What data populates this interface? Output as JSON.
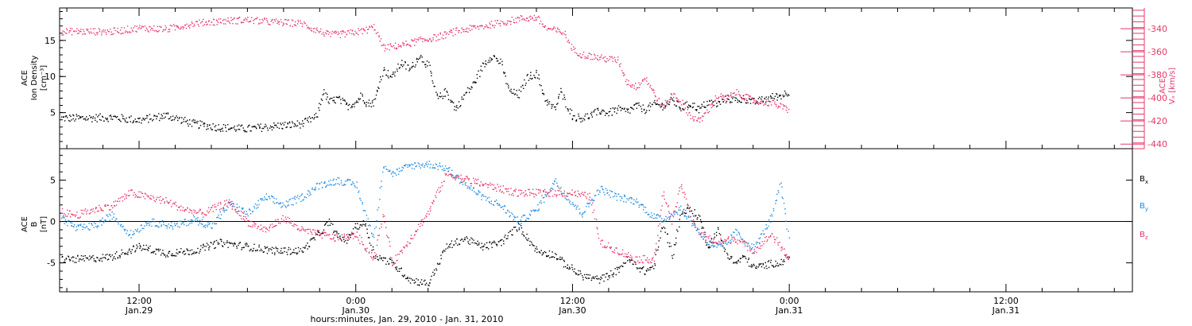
{
  "chart_data": [
    {
      "type": "scatter",
      "panel": "top",
      "ylabel_left": [
        "ACE",
        "Ion Density",
        "[cm⁻³]"
      ],
      "ylabel_right": [
        "ACE",
        "Vₓ [km/s]"
      ],
      "ylim_left": [
        0,
        19.5
      ],
      "yticks_left": [
        5,
        10,
        15
      ],
      "ylim_right": [
        -444,
        -322
      ],
      "yticks_right": [
        -340,
        -360,
        -380,
        -400,
        -420,
        -440
      ],
      "x_unit": "hours since 2010-01-29 00:00",
      "xlim": [
        7.6,
        67
      ],
      "series": [
        {
          "axis": "left",
          "color": "#000000",
          "x": [
            7.7,
            9,
            10.5,
            12,
            13.5,
            15,
            16.5,
            18,
            19.5,
            21,
            21.8,
            22.2,
            22.5,
            23,
            23.5,
            24,
            24.3,
            24.6,
            25,
            25.5,
            26,
            26.5,
            27,
            27.5,
            28,
            28.5,
            29,
            29.5,
            30,
            30.5,
            31,
            31.5,
            32,
            32.5,
            33,
            33.5,
            34,
            34.5,
            35,
            35.3,
            36,
            36.5,
            37,
            37.5,
            38,
            38.5,
            39,
            39.5,
            40,
            40.5,
            41,
            41.5,
            42,
            42.5,
            43,
            43.5,
            44,
            44.5,
            45,
            45.5,
            46,
            46.5,
            47,
            47.5,
            48
          ],
          "y": [
            4.3,
            4.3,
            4.4,
            4,
            4.7,
            3.5,
            3,
            2.8,
            3.2,
            3.5,
            4.5,
            8,
            6.5,
            7,
            6,
            6.5,
            7.5,
            6.3,
            6.5,
            11,
            10,
            12,
            11,
            13,
            11.5,
            7,
            8,
            5.5,
            7.5,
            9,
            11.5,
            13,
            12,
            8,
            7.5,
            10,
            10.5,
            6.7,
            5.5,
            8,
            4.5,
            4.3,
            4.7,
            5.3,
            5,
            5.5,
            5.2,
            6,
            5.5,
            6.2,
            6,
            6.7,
            5.7,
            6.3,
            5.5,
            6.5,
            6.2,
            7,
            6.8,
            7,
            6.5,
            6.8,
            7.2,
            7.4,
            8
          ]
        },
        {
          "axis": "right",
          "color": "#e8386a",
          "x": [
            7.7,
            9,
            10.5,
            12,
            13.5,
            15,
            16.5,
            18,
            19.5,
            21,
            21.5,
            22.5,
            23.5,
            24.5,
            25,
            25.5,
            26.5,
            27.5,
            28.5,
            29.5,
            30.5,
            31.5,
            32.5,
            33,
            34,
            34.5,
            35.5,
            36,
            36.5,
            37.5,
            38.5,
            39,
            39.5,
            40,
            40.5,
            41,
            41.5,
            42,
            42.5,
            43,
            43.5,
            44,
            44.5,
            45,
            46,
            47,
            48
          ],
          "y": [
            -342,
            -342,
            -342,
            -339,
            -340,
            -335,
            -333,
            -332,
            -334,
            -335,
            -339,
            -345,
            -344,
            -341,
            -338,
            -356,
            -354,
            -350,
            -347,
            -342,
            -339,
            -336,
            -333,
            -331,
            -330,
            -339,
            -343,
            -358,
            -362,
            -365,
            -367,
            -386,
            -390,
            -382,
            -396,
            -408,
            -396,
            -403,
            -415,
            -420,
            -410,
            -398,
            -400,
            -395,
            -402,
            -404,
            -410
          ]
        }
      ]
    },
    {
      "type": "scatter",
      "panel": "bottom",
      "ylabel_left": [
        "ACE",
        "B",
        "[nT]"
      ],
      "ylim": [
        -8.5,
        8.8
      ],
      "yticks": [
        -5,
        0,
        5
      ],
      "x_unit": "hours since 2010-01-29 00:00",
      "xlim": [
        7.6,
        67
      ],
      "reference_line_y": 0,
      "series": [
        {
          "name": "Bx",
          "color": "#000000",
          "x": [
            7.7,
            9,
            10.5,
            11,
            12,
            13.5,
            15,
            16.5,
            18,
            19.5,
            21,
            22,
            22.5,
            23,
            23.5,
            24,
            24.5,
            25,
            25.5,
            26,
            27,
            28,
            29,
            30,
            31,
            32,
            33,
            34,
            35,
            35.5,
            36.5,
            37.5,
            38.5,
            39,
            40,
            40.5,
            41,
            41.5,
            42,
            42.5,
            43,
            43.5,
            44,
            44.5,
            45,
            45.5,
            46,
            46.5,
            47,
            47.5,
            48
          ],
          "y": [
            -4.5,
            -4.5,
            -4.2,
            -3.8,
            -3,
            -3.8,
            -3.5,
            -2.5,
            -3,
            -3.5,
            -3.5,
            -1.3,
            0,
            -1.8,
            -2.2,
            -0.5,
            -0.2,
            -4,
            -4.5,
            -5,
            -7,
            -7.5,
            -3,
            -2,
            -3,
            -2.5,
            -0.5,
            -3.5,
            -4,
            -5,
            -6.5,
            -7,
            -5.8,
            -4.5,
            -6,
            -5.3,
            0,
            -4,
            1,
            1.5,
            0.5,
            -3,
            -1,
            -3.8,
            -5,
            -4.2,
            -5.5,
            -5.3,
            -5,
            -5,
            -4
          ]
        },
        {
          "name": "By",
          "color": "#1e8ae0",
          "x": [
            7.7,
            8.5,
            9.5,
            10.5,
            11.5,
            12.5,
            14,
            15,
            16,
            17,
            18,
            19,
            20,
            21,
            22,
            23,
            24,
            24.5,
            25,
            25.5,
            26,
            27,
            28,
            29,
            30,
            31,
            32,
            33,
            34,
            35,
            35.5,
            36.5,
            37.5,
            38.5,
            39.5,
            40.5,
            41,
            42,
            43,
            43.5,
            44,
            44.5,
            45,
            46,
            47,
            47.5,
            48
          ],
          "y": [
            0.5,
            -0.8,
            -0.5,
            0.8,
            -1.5,
            0,
            -0.5,
            0.3,
            -0.5,
            2.2,
            1,
            3,
            2,
            3,
            4.5,
            5,
            4.5,
            1,
            -2,
            7,
            5.8,
            6.8,
            7,
            6.5,
            4.6,
            3,
            2,
            0,
            1.5,
            5,
            3.5,
            1,
            4,
            3,
            2.5,
            0.6,
            0.3,
            1.6,
            -1.2,
            -2.5,
            -3,
            -2.8,
            -1.2,
            -3.3,
            0.5,
            4.5,
            -2.5
          ]
        },
        {
          "name": "Bz",
          "color": "#e8386a",
          "x": [
            7.7,
            8.5,
            9.5,
            10.5,
            11.5,
            12.5,
            13.5,
            14.5,
            15.5,
            16.5,
            17,
            18,
            19,
            20,
            21,
            22,
            23,
            24,
            25,
            25.5,
            26,
            27,
            28,
            29,
            30,
            31,
            32,
            33,
            34,
            35,
            36,
            37,
            37.5,
            38.5,
            39.5,
            40.5,
            41,
            41.5,
            42,
            42.5,
            43,
            44,
            45,
            46,
            47,
            48
          ],
          "y": [
            1.2,
            0.8,
            1.5,
            2,
            3.5,
            3,
            2.5,
            1.5,
            1,
            2,
            2.3,
            0,
            -1,
            0.5,
            -1,
            -1.5,
            -2,
            -1.5,
            -4.5,
            1,
            -5,
            -2,
            1.2,
            5.8,
            5.2,
            4.6,
            4,
            3.5,
            3.5,
            3.5,
            3.5,
            3,
            -2.5,
            -3.5,
            -4.5,
            -4.5,
            3.5,
            0.2,
            4.5,
            1,
            -1.5,
            -2.5,
            -2,
            -3.5,
            -1.5,
            -4.5
          ]
        }
      ],
      "legend": {
        "placement": "right",
        "entries": [
          {
            "label": "B",
            "sub": "x",
            "color": "#000000"
          },
          {
            "label": "B",
            "sub": "y",
            "color": "#1e8ae0"
          },
          {
            "label": "B",
            "sub": "z",
            "color": "#e8386a"
          }
        ]
      }
    }
  ],
  "x_ticks": [
    {
      "x": 12,
      "time": "12:00",
      "date": "Jan.29"
    },
    {
      "x": 24,
      "time": "0:00",
      "date": "Jan.30"
    },
    {
      "x": 36,
      "time": "12:00",
      "date": "Jan.30"
    },
    {
      "x": 48,
      "time": "0:00",
      "date": "Jan.31"
    },
    {
      "x": 60,
      "time": "12:00",
      "date": "Jan.31"
    }
  ],
  "xlabel": "hours:minutes, Jan. 29, 2010 - Jan. 31, 2010",
  "colors": {
    "black": "#000000",
    "pink": "#e8386a",
    "blue": "#1e8ae0"
  }
}
